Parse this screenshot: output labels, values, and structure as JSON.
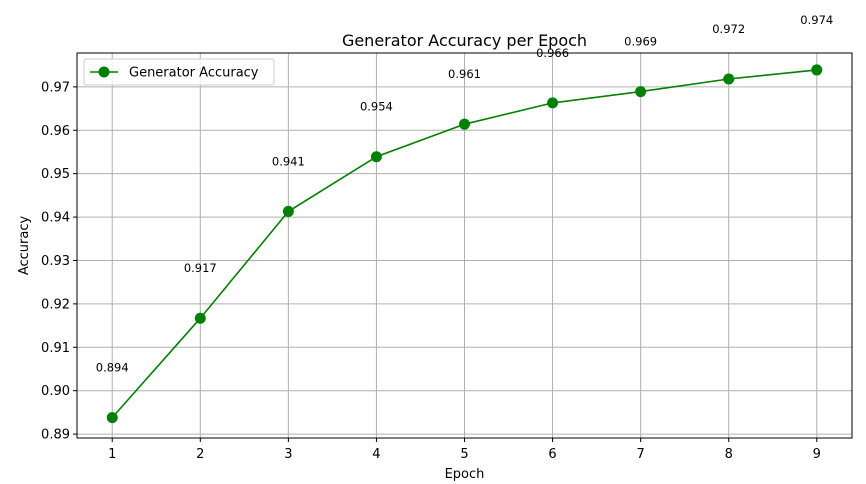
{
  "chart_data": {
    "type": "line",
    "title": "Generator Accuracy per Epoch",
    "xlabel": "Epoch",
    "ylabel": "Accuracy",
    "x": [
      1,
      2,
      3,
      4,
      5,
      6,
      7,
      8,
      9
    ],
    "series": [
      {
        "name": "Generator Accuracy",
        "color": "#008000",
        "marker": "circle",
        "values": [
          0.8938,
          0.9167,
          0.9413,
          0.9539,
          0.9614,
          0.9663,
          0.9689,
          0.9718,
          0.9739
        ]
      }
    ],
    "data_labels": [
      "0.894",
      "0.917",
      "0.941",
      "0.954",
      "0.961",
      "0.966",
      "0.969",
      "0.972",
      "0.974"
    ],
    "xlim": [
      0.6,
      9.4
    ],
    "ylim": [
      0.8891,
      0.9778
    ],
    "xticks": [
      "1",
      "2",
      "3",
      "4",
      "5",
      "6",
      "7",
      "8",
      "9"
    ],
    "yticks": [
      "0.89",
      "0.90",
      "0.91",
      "0.92",
      "0.93",
      "0.94",
      "0.95",
      "0.96",
      "0.97"
    ],
    "ytick_values": [
      0.89,
      0.9,
      0.91,
      0.92,
      0.93,
      0.94,
      0.95,
      0.96,
      0.97
    ],
    "grid": true,
    "legend": "upper-left"
  }
}
